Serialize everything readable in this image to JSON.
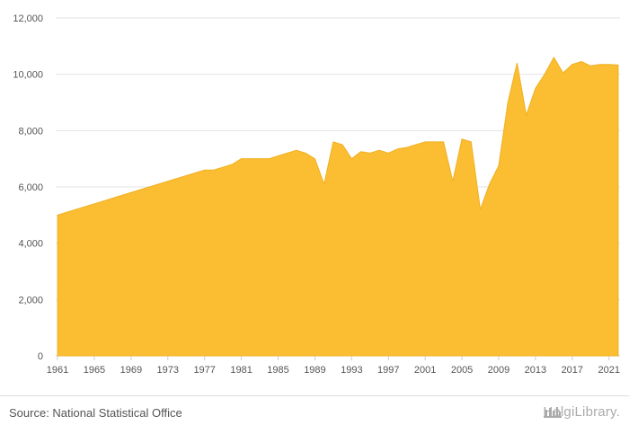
{
  "chart_data": {
    "type": "area",
    "x": [
      1961,
      1962,
      1963,
      1964,
      1965,
      1966,
      1967,
      1968,
      1969,
      1970,
      1971,
      1972,
      1973,
      1974,
      1975,
      1976,
      1977,
      1978,
      1979,
      1980,
      1981,
      1982,
      1983,
      1984,
      1985,
      1986,
      1987,
      1988,
      1989,
      1990,
      1991,
      1992,
      1993,
      1994,
      1995,
      1996,
      1997,
      1998,
      1999,
      2000,
      2001,
      2002,
      2003,
      2004,
      2005,
      2006,
      2007,
      2008,
      2009,
      2010,
      2011,
      2012,
      2013,
      2014,
      2015,
      2016,
      2017,
      2018,
      2019,
      2020,
      2021,
      2022
    ],
    "series": [
      {
        "values": [
          5000,
          5100,
          5200,
          5300,
          5400,
          5500,
          5600,
          5700,
          5800,
          5900,
          6000,
          6100,
          6200,
          6300,
          6400,
          6500,
          6600,
          6600,
          6700,
          6800,
          7000,
          7000,
          7000,
          7000,
          7100,
          7200,
          7300,
          7200,
          7000,
          6100,
          7600,
          7500,
          7000,
          7250,
          7200,
          7300,
          7200,
          7350,
          7400,
          7500,
          7600,
          7600,
          7600,
          6200,
          7700,
          7600,
          5200,
          6100,
          6750,
          9000,
          10400,
          8550,
          9500,
          10000,
          10600,
          10050,
          10350,
          10450,
          10300,
          10350,
          10350,
          10330
        ]
      }
    ],
    "x_tick_labels": [
      "1961",
      "1965",
      "1969",
      "1973",
      "1977",
      "1981",
      "1985",
      "1989",
      "1993",
      "1997",
      "2001",
      "2005",
      "2009",
      "2013",
      "2017",
      "2021"
    ],
    "y_tick_labels": [
      "0",
      "2,000",
      "4,000",
      "6,000",
      "8,000",
      "10,000",
      "12,000"
    ],
    "y_ticks": [
      0,
      2000,
      4000,
      6000,
      8000,
      10000,
      12000
    ],
    "x_ticks": [
      1961,
      1965,
      1969,
      1973,
      1977,
      1981,
      1985,
      1989,
      1993,
      1997,
      2001,
      2005,
      2009,
      2013,
      2017,
      2021
    ],
    "ylim": [
      0,
      12000
    ],
    "xlim": [
      1960.8,
      2022.2
    ],
    "grid": "horizontal",
    "fill_color": "#fbbd32",
    "line_color": "#f0b020",
    "grid_color": "#e3e3e3"
  },
  "footer": {
    "source": "Source: National Statistical Office",
    "logo_text": "HelgiLibrary."
  }
}
